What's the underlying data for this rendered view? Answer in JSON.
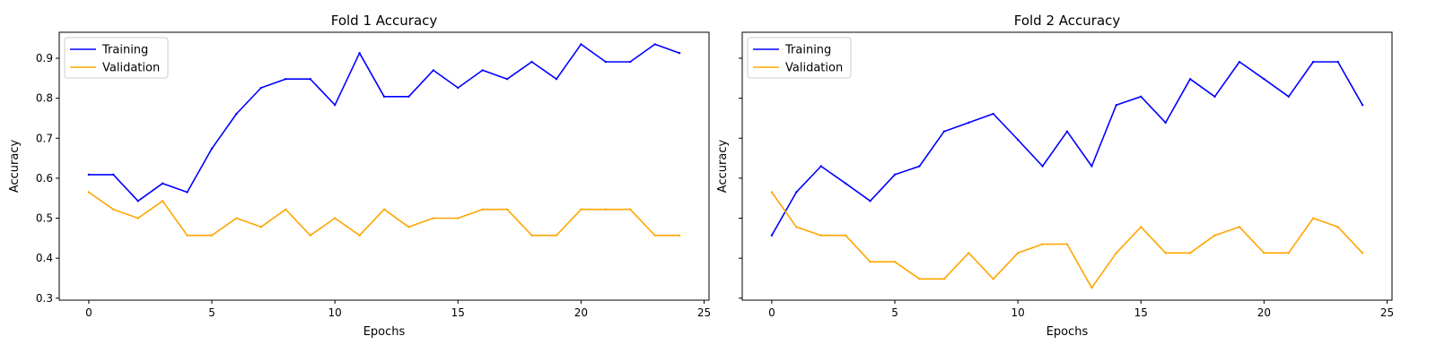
{
  "chart_data": [
    {
      "type": "line",
      "title": "Fold 1 Accuracy",
      "xlabel": "Epochs",
      "ylabel": "Accuracy",
      "xlim": [
        -1.2,
        25.2
      ],
      "ylim": [
        0.295,
        0.965
      ],
      "xticks": [
        0,
        5,
        10,
        15,
        20,
        25
      ],
      "yticks": [
        0.3,
        0.4,
        0.5,
        0.6,
        0.7,
        0.8,
        0.9
      ],
      "ytick_labels_visible": true,
      "legend_position": "top-left",
      "x": [
        0,
        1,
        2,
        3,
        4,
        5,
        6,
        7,
        8,
        9,
        10,
        11,
        12,
        13,
        14,
        15,
        16,
        17,
        18,
        19,
        20,
        21,
        22,
        23,
        24
      ],
      "series": [
        {
          "name": "Training",
          "color": "#0000ff",
          "values": [
            0.609,
            0.609,
            0.543,
            0.587,
            0.565,
            0.674,
            0.761,
            0.826,
            0.848,
            0.848,
            0.783,
            0.913,
            0.804,
            0.804,
            0.87,
            0.826,
            0.87,
            0.848,
            0.891,
            0.848,
            0.935,
            0.891,
            0.891,
            0.935,
            0.913
          ]
        },
        {
          "name": "Validation",
          "color": "#ffa500",
          "values": [
            0.565,
            0.522,
            0.5,
            0.543,
            0.457,
            0.457,
            0.5,
            0.478,
            0.522,
            0.457,
            0.5,
            0.457,
            0.522,
            0.478,
            0.5,
            0.5,
            0.522,
            0.522,
            0.457,
            0.457,
            0.522,
            0.522,
            0.522,
            0.457,
            0.457
          ]
        }
      ]
    },
    {
      "type": "line",
      "title": "Fold 2 Accuracy",
      "xlabel": "Epochs",
      "ylabel": "Accuracy",
      "xlim": [
        -1.2,
        25.2
      ],
      "ylim": [
        0.295,
        0.965
      ],
      "xticks": [
        0,
        5,
        10,
        15,
        20,
        25
      ],
      "yticks": [
        0.3,
        0.4,
        0.5,
        0.6,
        0.7,
        0.8,
        0.9
      ],
      "ytick_labels_visible": false,
      "legend_position": "top-left",
      "x": [
        0,
        1,
        2,
        3,
        4,
        5,
        6,
        7,
        8,
        9,
        10,
        11,
        12,
        13,
        14,
        15,
        16,
        17,
        18,
        19,
        20,
        21,
        22,
        23,
        24
      ],
      "series": [
        {
          "name": "Training",
          "color": "#0000ff",
          "values": [
            0.457,
            0.565,
            0.63,
            0.587,
            0.543,
            0.609,
            0.63,
            0.717,
            0.739,
            0.761,
            0.696,
            0.63,
            0.717,
            0.63,
            0.783,
            0.804,
            0.739,
            0.848,
            0.804,
            0.891,
            0.848,
            0.804,
            0.891,
            0.891,
            0.783
          ]
        },
        {
          "name": "Validation",
          "color": "#ffa500",
          "values": [
            0.565,
            0.478,
            0.457,
            0.457,
            0.391,
            0.391,
            0.348,
            0.348,
            0.413,
            0.348,
            0.413,
            0.435,
            0.435,
            0.326,
            0.413,
            0.478,
            0.413,
            0.413,
            0.457,
            0.478,
            0.413,
            0.413,
            0.5,
            0.478,
            0.413
          ]
        }
      ]
    }
  ]
}
